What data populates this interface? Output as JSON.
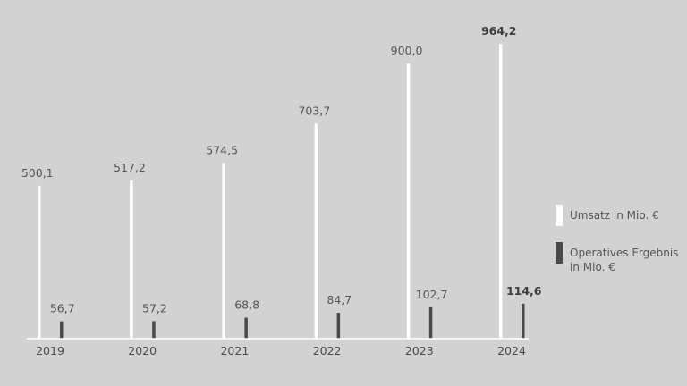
{
  "chart_data": {
    "type": "bar",
    "categories": [
      "2019",
      "2020",
      "2021",
      "2022",
      "2023",
      "2024"
    ],
    "series": [
      {
        "name": "Umsatz in Mio. €",
        "values": [
          500.1,
          517.2,
          574.5,
          703.7,
          900.0,
          964.2
        ],
        "labels": [
          "500,1",
          "517,2",
          "574,5",
          "703,7",
          "900,0",
          "964,2"
        ],
        "color": "#ffffff"
      },
      {
        "name": "Operatives Ergebnis in Mio. €",
        "values": [
          56.7,
          57.2,
          68.8,
          84.7,
          102.7,
          114.6
        ],
        "labels": [
          "56,7",
          "57,2",
          "68,8",
          "84,7",
          "102,7",
          "114,6"
        ],
        "color": "#4a4a4a"
      }
    ],
    "highlight_category": "2024",
    "legend_position": "right",
    "grid": false
  }
}
